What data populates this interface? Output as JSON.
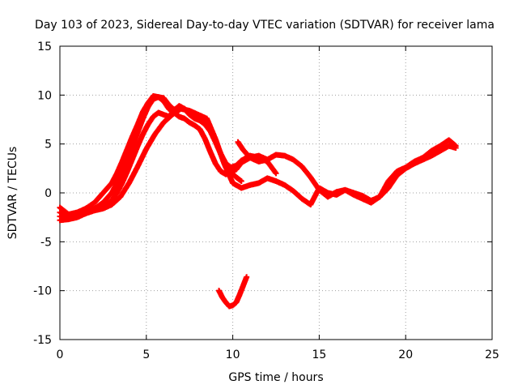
{
  "chart_data": {
    "type": "scatter",
    "title": "Day 103 of 2023, Sidereal Day-to-day VTEC variation (SDTVAR) for receiver lama",
    "xlabel": "GPS time / hours",
    "ylabel": "SDTVAR / TECUs",
    "xlim": [
      0,
      25
    ],
    "ylim": [
      -15,
      15
    ],
    "xticks": [
      0,
      5,
      10,
      15,
      20,
      25
    ],
    "yticks": [
      -15,
      -10,
      -5,
      0,
      5,
      10,
      15
    ],
    "grid": true,
    "marker": "plus",
    "series_color": "#ff0000",
    "series": [
      {
        "name": "track-1",
        "x": [
          0.0,
          0.5,
          1.0,
          1.5,
          2.0,
          2.5,
          3.0,
          3.3,
          3.6,
          3.9,
          4.2,
          4.5,
          4.8,
          5.1,
          5.4,
          5.7,
          6.0,
          6.3,
          6.6,
          6.9,
          7.2,
          7.5,
          7.8,
          8.1,
          8.4,
          8.7,
          9.0,
          9.3,
          9.6,
          9.9,
          10.2,
          10.5
        ],
        "y": [
          -1.5,
          -2.2,
          -2.0,
          -1.6,
          -1.0,
          0.0,
          1.0,
          2.0,
          3.2,
          4.5,
          5.8,
          7.0,
          8.3,
          9.2,
          9.9,
          9.8,
          9.4,
          8.6,
          8.2,
          7.8,
          7.6,
          7.2,
          6.9,
          6.5,
          5.5,
          4.2,
          3.0,
          2.2,
          1.9,
          2.1,
          1.6,
          1.2
        ]
      },
      {
        "name": "track-2",
        "x": [
          0.0,
          0.5,
          1.0,
          1.5,
          2.0,
          2.5,
          3.0,
          3.3,
          3.6,
          3.9,
          4.2,
          4.5,
          4.8,
          5.1,
          5.4,
          5.7,
          6.0,
          6.3,
          6.6,
          6.9,
          7.2,
          7.5,
          7.8,
          8.1,
          8.4,
          8.7,
          9.0,
          9.3,
          9.6,
          9.9,
          10.2,
          10.5,
          11.0,
          11.5,
          12.0
        ],
        "y": [
          -2.0,
          -2.4,
          -2.2,
          -1.9,
          -1.6,
          -1.0,
          0.0,
          1.0,
          2.2,
          3.5,
          4.8,
          6.2,
          7.6,
          8.8,
          9.6,
          9.8,
          9.7,
          9.0,
          8.5,
          8.8,
          8.6,
          8.2,
          8.0,
          7.8,
          7.3,
          6.5,
          5.3,
          4.0,
          2.8,
          2.2,
          2.4,
          3.1,
          3.6,
          3.8,
          3.4
        ]
      },
      {
        "name": "track-3",
        "x": [
          0.0,
          0.5,
          1.0,
          1.5,
          2.0,
          2.5,
          3.0,
          3.3,
          3.6,
          3.9,
          4.2,
          4.5,
          4.8,
          5.1,
          5.4,
          5.7,
          6.0,
          6.3,
          6.6,
          6.9,
          7.2,
          7.5,
          7.8,
          8.1,
          8.4,
          8.7,
          9.0,
          9.3,
          9.6,
          9.9,
          10.2,
          10.5,
          11.0,
          11.5,
          12.0,
          12.5
        ],
        "y": [
          -2.4,
          -2.6,
          -2.3,
          -2.0,
          -1.7,
          -1.4,
          -0.8,
          0.0,
          1.0,
          2.2,
          3.5,
          4.8,
          6.0,
          7.0,
          7.8,
          8.2,
          8.0,
          7.8,
          8.4,
          8.9,
          8.6,
          8.0,
          7.6,
          7.4,
          7.0,
          6.3,
          5.2,
          4.0,
          3.0,
          2.6,
          2.8,
          3.3,
          3.8,
          3.6,
          3.2,
          2.0
        ]
      },
      {
        "name": "track-4",
        "x": [
          0.0,
          0.5,
          1.0,
          1.5,
          2.0,
          2.5,
          3.0,
          3.5,
          4.0,
          4.5,
          5.0,
          5.5,
          6.0,
          6.5,
          7.0,
          7.5,
          8.0,
          8.5,
          9.0,
          9.5,
          10.0,
          10.5,
          11.0,
          11.5,
          12.0,
          12.5,
          13.0,
          13.5,
          14.0,
          14.5,
          15.0,
          15.5,
          16.0,
          16.5,
          17.0,
          17.5,
          18.0,
          18.5,
          19.0,
          19.5,
          20.0,
          20.5,
          21.0,
          21.5,
          22.0,
          22.5,
          22.9
        ],
        "y": [
          -2.8,
          -2.7,
          -2.5,
          -2.1,
          -1.8,
          -1.6,
          -1.2,
          -0.4,
          1.0,
          2.7,
          4.5,
          6.0,
          7.2,
          8.0,
          8.6,
          8.4,
          8.0,
          7.6,
          5.5,
          3.0,
          1.0,
          0.5,
          0.8,
          1.0,
          1.5,
          1.2,
          0.8,
          0.2,
          -0.6,
          -1.2,
          0.5,
          0.0,
          -0.2,
          0.3,
          0.0,
          -0.3,
          -0.8,
          -0.4,
          0.5,
          1.8,
          2.5,
          3.0,
          3.4,
          3.8,
          4.3,
          4.8,
          4.6
        ]
      },
      {
        "name": "track-5",
        "x": [
          10.3,
          10.6,
          11.0,
          11.5,
          12.0,
          12.5,
          13.0,
          13.5,
          14.0,
          14.5,
          15.0,
          15.5,
          16.0,
          16.5,
          17.0,
          17.5,
          18.0,
          18.5,
          19.0,
          19.5,
          20.0,
          20.5,
          21.0,
          21.5,
          22.0,
          22.5,
          22.9
        ],
        "y": [
          5.2,
          4.4,
          3.6,
          3.2,
          3.4,
          3.9,
          3.8,
          3.4,
          2.7,
          1.6,
          0.3,
          -0.4,
          0.1,
          0.3,
          -0.2,
          -0.6,
          -1.0,
          -0.4,
          1.2,
          2.2,
          2.6,
          3.2,
          3.6,
          4.3,
          4.8,
          5.4,
          4.8
        ]
      },
      {
        "name": "track-6",
        "x": [
          9.2,
          9.4,
          9.6,
          9.8,
          10.0,
          10.2,
          10.4,
          10.6,
          10.8
        ],
        "y": [
          -10.0,
          -10.7,
          -11.2,
          -11.6,
          -11.5,
          -11.2,
          -10.4,
          -9.5,
          -8.6
        ]
      }
    ]
  }
}
